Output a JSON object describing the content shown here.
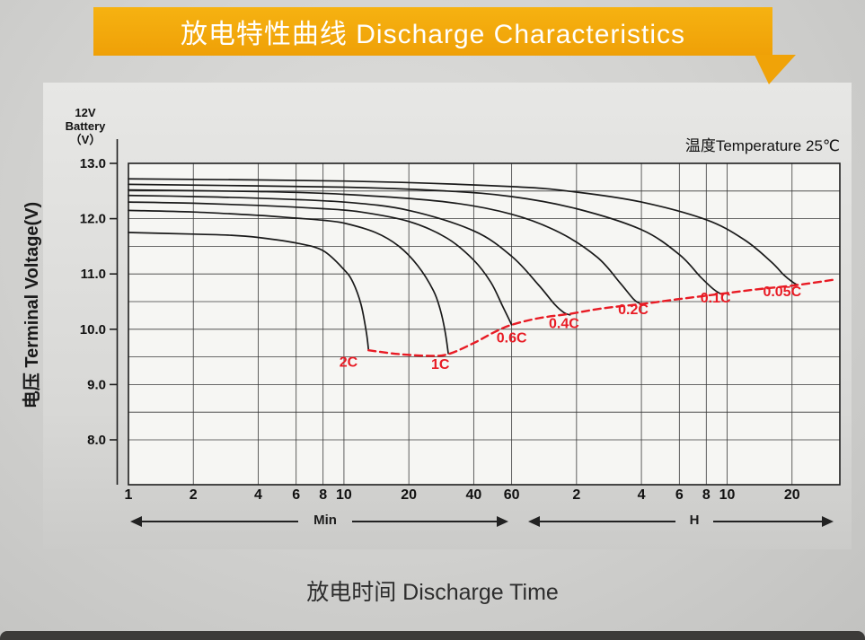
{
  "banner": {
    "title": "放电特性曲线 Discharge Characteristics"
  },
  "colors": {
    "banner": "#F0A308",
    "curve": "#1a1a1a",
    "cutoff": "#E81B24",
    "grid": "#3a3a3a"
  },
  "y_axis": {
    "title": "电压 Terminal Voltage(V)",
    "battery_label_lines": [
      "12V",
      "Battery",
      "（V）"
    ]
  },
  "x_axis": {
    "title": "放电时间 Discharge Time",
    "min_section_label": "Min",
    "h_section_label": "H"
  },
  "temperature_label": "温度Temperature 25℃",
  "chart_data": {
    "type": "line",
    "title": "放电特性曲线 Discharge Characteristics",
    "xlabel": "放电时间 Discharge Time",
    "ylabel": "电压 Terminal Voltage(V)",
    "x_scale": "log",
    "x_unit": "minutes",
    "xlim_minutes": [
      1,
      2000
    ],
    "ylim": [
      7.2,
      13.0
    ],
    "y_ticks": [
      13.0,
      12.0,
      11.0,
      10.0,
      9.0,
      8.0
    ],
    "y_gridline_step": 0.5,
    "x_ticks_minutes": [
      1,
      2,
      4,
      6,
      8,
      10,
      20,
      40,
      60
    ],
    "x_ticks_hours": [
      2,
      4,
      6,
      8,
      10,
      20
    ],
    "temperature": "温度Temperature 25℃",
    "grid": true,
    "legend_position": "labels-on-curves",
    "series": [
      {
        "name": "2C",
        "points": [
          [
            1,
            11.75
          ],
          [
            2,
            11.72
          ],
          [
            3,
            11.7
          ],
          [
            4,
            11.66
          ],
          [
            6,
            11.56
          ],
          [
            8,
            11.42
          ],
          [
            10,
            11.08
          ],
          [
            11,
            10.85
          ],
          [
            12,
            10.45
          ],
          [
            12.7,
            9.95
          ],
          [
            13,
            9.62
          ]
        ]
      },
      {
        "name": "1C",
        "points": [
          [
            1,
            12.15
          ],
          [
            2,
            12.12
          ],
          [
            4,
            12.06
          ],
          [
            6,
            12.01
          ],
          [
            8,
            11.97
          ],
          [
            10,
            11.92
          ],
          [
            14,
            11.75
          ],
          [
            18,
            11.5
          ],
          [
            22,
            11.15
          ],
          [
            26,
            10.7
          ],
          [
            28,
            10.35
          ],
          [
            29.5,
            9.95
          ],
          [
            30.5,
            9.56
          ]
        ]
      },
      {
        "name": "0.6C",
        "points": [
          [
            1,
            12.3
          ],
          [
            2,
            12.28
          ],
          [
            4,
            12.24
          ],
          [
            8,
            12.18
          ],
          [
            12,
            12.12
          ],
          [
            20,
            11.95
          ],
          [
            30,
            11.65
          ],
          [
            40,
            11.25
          ],
          [
            48,
            10.85
          ],
          [
            54,
            10.45
          ],
          [
            58,
            10.2
          ],
          [
            60,
            10.08
          ]
        ]
      },
      {
        "name": "0.4C",
        "points": [
          [
            1,
            12.42
          ],
          [
            2,
            12.4
          ],
          [
            4,
            12.37
          ],
          [
            10,
            12.3
          ],
          [
            20,
            12.15
          ],
          [
            40,
            11.78
          ],
          [
            60,
            11.32
          ],
          [
            80,
            10.8
          ],
          [
            95,
            10.45
          ],
          [
            105,
            10.3
          ],
          [
            112,
            10.26
          ]
        ]
      },
      {
        "name": "0.2C",
        "points": [
          [
            1,
            12.52
          ],
          [
            4,
            12.49
          ],
          [
            10,
            12.44
          ],
          [
            30,
            12.3
          ],
          [
            60,
            12.08
          ],
          [
            100,
            11.75
          ],
          [
            150,
            11.3
          ],
          [
            190,
            10.85
          ],
          [
            220,
            10.55
          ],
          [
            235,
            10.47
          ],
          [
            245,
            10.45
          ]
        ]
      },
      {
        "name": "0.1C",
        "points": [
          [
            1,
            12.62
          ],
          [
            10,
            12.57
          ],
          [
            30,
            12.5
          ],
          [
            60,
            12.4
          ],
          [
            120,
            12.18
          ],
          [
            240,
            11.8
          ],
          [
            360,
            11.35
          ],
          [
            450,
            10.95
          ],
          [
            520,
            10.72
          ],
          [
            560,
            10.64
          ]
        ]
      },
      {
        "name": "0.05C",
        "points": [
          [
            1,
            12.72
          ],
          [
            10,
            12.68
          ],
          [
            60,
            12.58
          ],
          [
            120,
            12.48
          ],
          [
            240,
            12.3
          ],
          [
            480,
            11.98
          ],
          [
            720,
            11.62
          ],
          [
            960,
            11.22
          ],
          [
            1100,
            10.98
          ],
          [
            1200,
            10.86
          ],
          [
            1270,
            10.8
          ]
        ]
      }
    ],
    "cutoff_curve": {
      "name": "cutoff-voltage-curve",
      "style": "dashed",
      "points": [
        [
          13,
          9.62
        ],
        [
          18,
          9.55
        ],
        [
          25,
          9.52
        ],
        [
          30.5,
          9.55
        ],
        [
          40,
          9.75
        ],
        [
          50,
          9.95
        ],
        [
          60,
          10.08
        ],
        [
          80,
          10.2
        ],
        [
          112,
          10.28
        ],
        [
          160,
          10.38
        ],
        [
          245,
          10.46
        ],
        [
          350,
          10.54
        ],
        [
          560,
          10.64
        ],
        [
          820,
          10.72
        ],
        [
          1270,
          10.8
        ],
        [
          1900,
          10.9
        ]
      ]
    },
    "curve_labels": [
      {
        "text": "2C",
        "t": 10.5,
        "v": 9.32
      },
      {
        "text": "1C",
        "t": 28,
        "v": 9.28
      },
      {
        "text": "0.6C",
        "t": 60,
        "v": 9.76
      },
      {
        "text": "0.4C",
        "t": 105,
        "v": 10.02
      },
      {
        "text": "0.2C",
        "t": 220,
        "v": 10.27
      },
      {
        "text": "0.1C",
        "t": 530,
        "v": 10.48
      },
      {
        "text": "0.05C",
        "t": 1080,
        "v": 10.6
      }
    ]
  }
}
